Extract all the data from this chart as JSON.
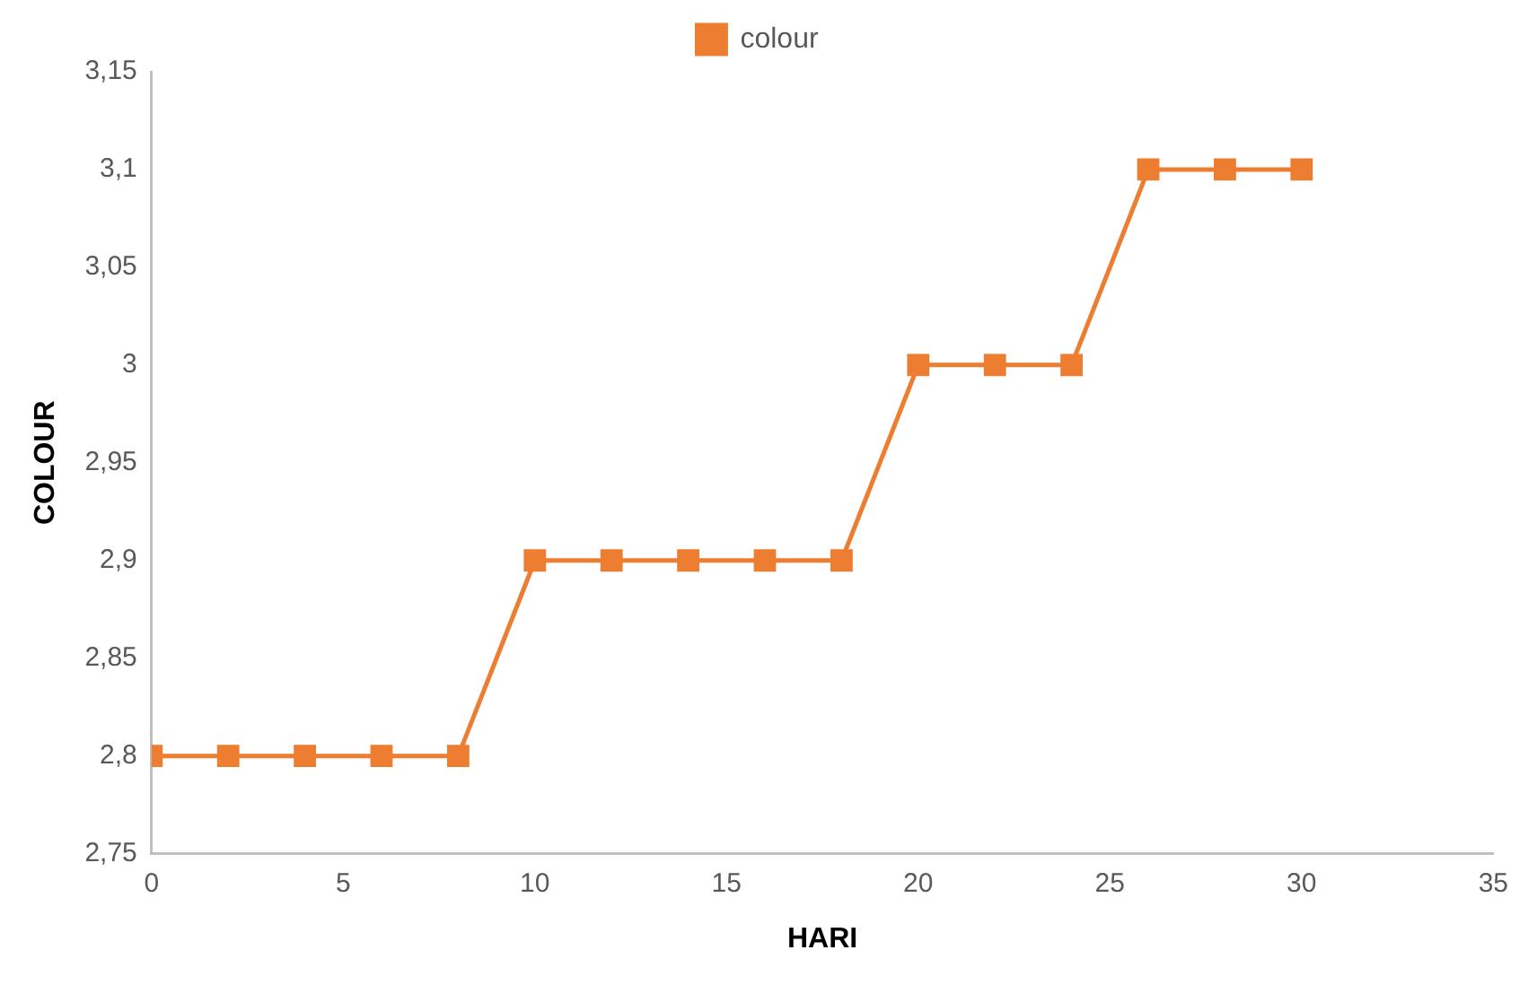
{
  "chart_data": {
    "type": "line",
    "xlabel": "HARI",
    "ylabel": "COLOUR",
    "x": [
      0,
      2,
      4,
      6,
      8,
      10,
      12,
      14,
      16,
      18,
      20,
      22,
      24,
      26,
      28,
      30
    ],
    "series": [
      {
        "name": "colour",
        "color": "#ed7d31",
        "values": [
          2.8,
          2.8,
          2.8,
          2.8,
          2.8,
          2.9,
          2.9,
          2.9,
          2.9,
          2.9,
          3.0,
          3.0,
          3.0,
          3.1,
          3.1,
          3.1
        ]
      }
    ],
    "xlim": [
      0,
      35
    ],
    "xticks": [
      0,
      5,
      10,
      15,
      20,
      25,
      30,
      35
    ],
    "ylim": [
      2.75,
      3.15
    ],
    "yticks": [
      {
        "value": 2.75,
        "label": "2,75"
      },
      {
        "value": 2.8,
        "label": "2,8"
      },
      {
        "value": 2.85,
        "label": "2,85"
      },
      {
        "value": 2.9,
        "label": "2,9"
      },
      {
        "value": 2.95,
        "label": "2,95"
      },
      {
        "value": 3.0,
        "label": "3"
      },
      {
        "value": 3.05,
        "label": "3,05"
      },
      {
        "value": 3.1,
        "label": "3,1"
      },
      {
        "value": 3.15,
        "label": "3,15"
      }
    ],
    "grid": false,
    "legend": "top",
    "marker": "square",
    "line_style": "solid"
  }
}
